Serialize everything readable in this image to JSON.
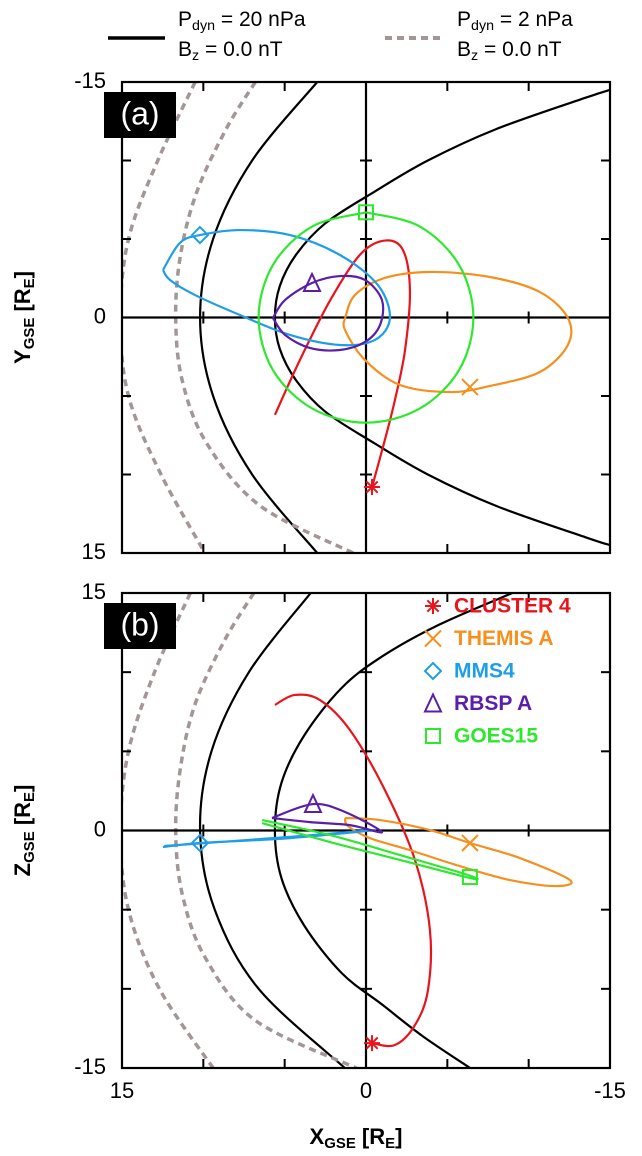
{
  "model_legend": [
    {
      "color": "#000000",
      "dash": false,
      "lines": [
        [
          {
            "text": "P"
          },
          {
            "text": "dyn",
            "sub": true
          },
          {
            "text": " = 20 nPa"
          }
        ],
        [
          {
            "text": "B"
          },
          {
            "text": "z",
            "sub": true
          },
          {
            "text": " = 0.0 nT"
          }
        ]
      ]
    },
    {
      "color": "#a39696",
      "dash": true,
      "lines": [
        [
          {
            "text": "P"
          },
          {
            "text": "dyn",
            "sub": true
          },
          {
            "text": " = 2 nPa"
          }
        ],
        [
          {
            "text": "B"
          },
          {
            "text": "z",
            "sub": true
          },
          {
            "text": " = 0.0 nT"
          }
        ]
      ]
    }
  ],
  "chart_data": [
    {
      "type": "line",
      "panel_label": "(a)",
      "ylabel": [
        {
          "text": "Y"
        },
        {
          "text": "GSE",
          "sub": true
        },
        {
          "text": " [R"
        },
        {
          "text": "E",
          "sub": true
        },
        {
          "text": "]"
        }
      ],
      "xlim": [
        15,
        -15
      ],
      "ylim": [
        15,
        -15
      ],
      "yticks": [
        -15,
        0,
        15
      ],
      "minor_ticks": [
        -10,
        -5,
        5,
        10
      ],
      "zero_lines": true,
      "boundaries": [
        {
          "color": "#000000",
          "dash": false,
          "x": [
            3.0,
            7.0,
            9.4,
            10.2,
            9.4,
            7.0,
            3.0
          ],
          "values": [
            -15,
            -10,
            -5,
            0,
            5,
            10,
            15
          ]
        },
        {
          "color": "#000000",
          "dash": false,
          "x": [
            -15,
            -13.5,
            -8,
            -3.8,
            -0.5,
            2.5,
            4.3,
            5.3,
            5.6,
            5.3,
            4.3,
            2.5,
            -0.5,
            -3.8,
            -8,
            -13.5,
            -15
          ],
          "values": [
            -14.5,
            -14,
            -12,
            -10,
            -8,
            -6,
            -4,
            -2,
            0,
            2,
            4,
            6,
            8,
            10,
            12,
            14,
            14.5
          ]
        },
        {
          "color": "#a39696",
          "dash": true,
          "x": [
            6.8,
            8.6,
            10.4,
            11.4,
            11.7,
            11.3,
            9.8,
            6.5,
            0.8
          ],
          "values": [
            -15,
            -12,
            -8,
            -4,
            0,
            4,
            8,
            12,
            15
          ]
        },
        {
          "color": "#a39696",
          "dash": true,
          "x": [
            10.5,
            12.8,
            14.6,
            15.1,
            14.6,
            12.6,
            9.9
          ],
          "values": [
            -15,
            -10,
            -5,
            0,
            5,
            10,
            15
          ]
        }
      ],
      "series": [
        {
          "color": "#e8141c",
          "marker": "asterisk",
          "marker_x": -0.37,
          "marker_y": 10.8,
          "x": [
            5.6,
            4.06,
            2.2,
            0.37,
            -1.16,
            -2.27,
            -2.7,
            -2.4,
            -1.78,
            -1.16,
            -0.37
          ],
          "values": [
            6.2,
            2.7,
            -1.1,
            -4.0,
            -4.9,
            -4.3,
            -1.75,
            2.07,
            5.25,
            7.8,
            10.8
          ]
        },
        {
          "color": "#f5901e",
          "marker": "x",
          "marker_x": -6.39,
          "marker_y": 4.43,
          "x": [
            1.29,
            0.68,
            -1.16,
            -3.93,
            -7.62,
            -10.69,
            -12.41,
            -12.41,
            -10.69,
            -7.62,
            -5.16,
            -2.09,
            0.06,
            1.29,
            1.29
          ],
          "values": [
            0.03,
            -1.43,
            -2.52,
            -2.9,
            -2.58,
            -1.62,
            0.03,
            1.75,
            3.47,
            4.36,
            4.75,
            4.3,
            2.71,
            0.8,
            0.03
          ]
        },
        {
          "color": "#1f9ee8",
          "marker": "diamond",
          "marker_x": 10.21,
          "marker_y": -5.25,
          "x": [
            12.48,
            11.44,
            10.21,
            7.75,
            4.67,
            1.6,
            -0.73,
            -1.47,
            -0.55,
            1.6,
            4.67,
            7.75,
            10.51,
            12.05,
            12.48
          ],
          "values": [
            -3.03,
            -4.75,
            -5.25,
            -5.57,
            -5.25,
            -3.98,
            -2.07,
            0.03,
            1.43,
            1.75,
            1.11,
            -0.16,
            -1.43,
            -2.39,
            -3.03
          ]
        },
        {
          "color": "#5a1fa6",
          "marker": "triangle",
          "marker_x": 3.32,
          "marker_y": -2.2,
          "x": [
            5.72,
            4.98,
            3.32,
            1.6,
            0.06,
            -0.98,
            -0.86,
            0.06,
            1.6,
            3.45,
            4.98,
            5.72
          ],
          "values": [
            0.03,
            -1.11,
            -2.2,
            -2.64,
            -2.39,
            -1.11,
            0.48,
            1.56,
            2.07,
            1.94,
            1.11,
            0.03
          ]
        },
        {
          "color": "#2ee82e",
          "marker": "square",
          "marker_x": 0,
          "marker_y": -6.7,
          "x": [
            0,
            3.3,
            5.72,
            6.6,
            5.72,
            3.3,
            0,
            -3.3,
            -5.72,
            -6.6,
            -5.72,
            -3.3,
            0
          ],
          "values": [
            -6.7,
            -5.8,
            -3.35,
            0,
            3.35,
            5.8,
            6.7,
            5.8,
            3.35,
            0,
            -3.35,
            -5.8,
            -6.7
          ]
        }
      ]
    },
    {
      "type": "line",
      "panel_label": "(b)",
      "ylabel": [
        {
          "text": "Z"
        },
        {
          "text": "GSE",
          "sub": true
        },
        {
          "text": " [R"
        },
        {
          "text": "E",
          "sub": true
        },
        {
          "text": "]"
        }
      ],
      "xlabel": [
        {
          "text": "X"
        },
        {
          "text": "GSE",
          "sub": true
        },
        {
          "text": " [R"
        },
        {
          "text": "E",
          "sub": true
        },
        {
          "text": "]"
        }
      ],
      "xlim": [
        15,
        -15
      ],
      "ylim": [
        -15,
        15
      ],
      "xticks": [
        15,
        0,
        -15
      ],
      "yticks": [
        -15,
        0,
        15
      ],
      "minor_ticks": [
        -10,
        -5,
        5,
        10
      ],
      "zero_lines": true,
      "boundaries": [
        {
          "color": "#000000",
          "dash": false,
          "x": [
            3.4,
            7.2,
            9.5,
            10.2,
            9.3,
            6.6,
            1.3
          ],
          "values": [
            15,
            10,
            5,
            0,
            -5,
            -10,
            -15
          ]
        },
        {
          "color": "#000000",
          "dash": false,
          "x": [
            -9,
            -4.5,
            -1,
            1.5,
            3.8,
            5.2,
            5.6,
            5.2,
            3.8,
            1.5,
            -1,
            -3.5,
            -6.4
          ],
          "values": [
            15,
            13,
            11,
            9,
            6,
            3,
            0,
            -3,
            -6,
            -9,
            -11,
            -13,
            -15
          ]
        },
        {
          "color": "#a39696",
          "dash": true,
          "x": [
            6.9,
            8.7,
            10.5,
            11.4,
            11.7,
            11.3,
            9.9,
            6.8,
            0.6
          ],
          "values": [
            15,
            12,
            8,
            4,
            0,
            -4,
            -8,
            -12,
            -15
          ]
        },
        {
          "color": "#a39696",
          "dash": true,
          "x": [
            10.8,
            13,
            14.6,
            15.1,
            14.6,
            12.7,
            9.4
          ],
          "values": [
            15,
            10,
            5,
            0,
            -5,
            -10,
            -15
          ]
        }
      ],
      "series": [
        {
          "name": "CLUSTER 4",
          "color": "#e8141c",
          "marker": "asterisk",
          "marker_x": -0.37,
          "marker_y": -13.43,
          "x": [
            5.6,
            4.37,
            2.83,
            0.99,
            -1.16,
            -3.01,
            -3.93,
            -3.81,
            -3.01,
            -1.78,
            -0.37
          ],
          "values": [
            7.93,
            8.56,
            8.24,
            6.35,
            2.56,
            -1.86,
            -6.28,
            -10.08,
            -12.29,
            -13.55,
            -13.43
          ]
        },
        {
          "name": "THEMIS A",
          "color": "#f5901e",
          "marker": "x",
          "marker_x": -6.39,
          "marker_y": -0.79,
          "x": [
            1.29,
            -0.86,
            -3.93,
            -6.39,
            -9.46,
            -12.54,
            -11.61,
            -8.85,
            -5.77,
            -2.7,
            -0.24,
            1.11,
            1.29
          ],
          "values": [
            0.79,
            0.66,
            0.03,
            -0.79,
            -1.74,
            -3.13,
            -3.51,
            -3.13,
            -2.25,
            -1.24,
            -0.48,
            0.28,
            0.79
          ]
        },
        {
          "name": "MMS4",
          "color": "#1f9ee8",
          "marker": "diamond",
          "marker_x": 10.21,
          "marker_y": -0.79,
          "x": [
            12.48,
            10.21,
            4.67,
            -0.55,
            4.67,
            12.4
          ],
          "values": [
            -1.04,
            -0.79,
            -0.48,
            0.03,
            -0.4,
            -0.98
          ]
        },
        {
          "name": "RBSP A",
          "color": "#5a1fa6",
          "marker": "triangle",
          "marker_x": 3.26,
          "marker_y": 1.67,
          "x": [
            5.78,
            3.26,
            1.29,
            -0.98,
            0.99,
            3.45,
            5.78
          ],
          "values": [
            0.79,
            1.67,
            1.17,
            -0.1,
            0.34,
            0.53,
            0.79
          ]
        },
        {
          "name": "GOES15",
          "color": "#2ee82e",
          "marker": "square",
          "marker_x": -6.39,
          "marker_y": -2.94,
          "x": [
            6.39,
            2.21,
            -2.09,
            -6.27,
            -6.39,
            -2.09,
            2.21,
            6.39
          ],
          "values": [
            0.66,
            -0.29,
            -1.55,
            -2.81,
            -3.0,
            -1.86,
            -0.73,
            0.47
          ]
        }
      ]
    }
  ]
}
